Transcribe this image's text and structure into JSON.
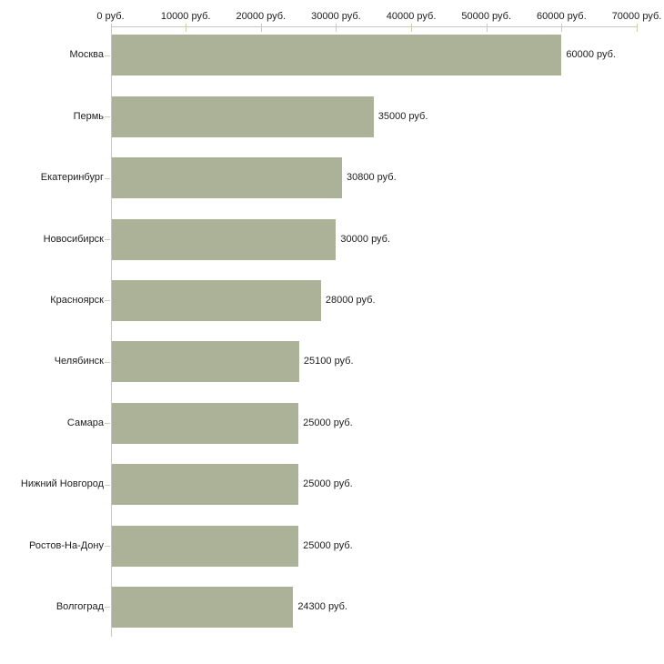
{
  "chart_data": {
    "type": "bar",
    "orientation": "horizontal",
    "title": "",
    "xlabel": "",
    "ylabel": "",
    "unit": "руб.",
    "categories": [
      "Москва",
      "Пермь",
      "Екатеринбург",
      "Новосибирск",
      "Красноярск",
      "Челябинск",
      "Самара",
      "Нижний Новгород",
      "Ростов-На-Дону",
      "Волгоград"
    ],
    "values": [
      60000,
      35000,
      30800,
      30000,
      28000,
      25100,
      25000,
      25000,
      25000,
      24300
    ],
    "value_labels": [
      "60000 руб.",
      "35000 руб.",
      "30800 руб.",
      "30000 руб.",
      "28000 руб.",
      "25100 руб.",
      "25000 руб.",
      "25000 руб.",
      "25000 руб.",
      "24300 руб."
    ],
    "xlim": [
      0,
      70000
    ],
    "x_ticks": [
      0,
      10000,
      20000,
      30000,
      40000,
      50000,
      60000,
      70000
    ],
    "x_tick_labels": [
      "0 руб.",
      "10000 руб.",
      "20000 руб.",
      "30000 руб.",
      "40000 руб.",
      "50000 руб.",
      "60000 руб.",
      "70000 руб."
    ],
    "grid": false,
    "legend": false,
    "axis_position": "top",
    "colors": {
      "bar": "#abb297",
      "axis_line": "#c6c6c6",
      "tick": "#cdd0a7",
      "text": "#1c1c1c",
      "background": "#ffffff"
    }
  }
}
